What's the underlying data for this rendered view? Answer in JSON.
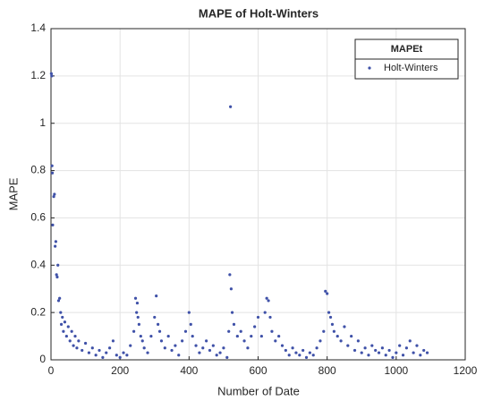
{
  "chart_data": {
    "type": "scatter",
    "title": "MAPE of Holt-Winters",
    "x_label": "Number of Date",
    "y_label": "MAPE",
    "legend_title": "MAPEt",
    "legend_position": "upper right",
    "grid": true,
    "xlim": [
      0,
      1200
    ],
    "xticks": [
      0,
      200,
      400,
      600,
      800,
      1000,
      1200
    ],
    "ylim": [
      0,
      1.4
    ],
    "yticks": [
      0,
      0.2,
      0.4,
      0.6,
      0.8,
      1,
      1.2,
      1.4
    ],
    "x": [
      1,
      2,
      3,
      4,
      5,
      8,
      10,
      12,
      14,
      16,
      18,
      20,
      22,
      25,
      28,
      30,
      33,
      36,
      40,
      45,
      50,
      55,
      60,
      65,
      70,
      75,
      80,
      90,
      100,
      110,
      120,
      130,
      140,
      150,
      160,
      170,
      180,
      190,
      200,
      210,
      220,
      230,
      240,
      245,
      248,
      250,
      252,
      255,
      260,
      265,
      270,
      280,
      290,
      300,
      305,
      310,
      315,
      320,
      330,
      340,
      350,
      360,
      370,
      380,
      390,
      400,
      405,
      410,
      420,
      430,
      440,
      450,
      460,
      470,
      480,
      490,
      500,
      510,
      515,
      518,
      520,
      522,
      525,
      530,
      540,
      550,
      560,
      570,
      580,
      590,
      600,
      610,
      620,
      625,
      630,
      635,
      640,
      650,
      660,
      670,
      680,
      690,
      700,
      710,
      720,
      730,
      740,
      750,
      760,
      770,
      780,
      790,
      795,
      800,
      805,
      810,
      815,
      820,
      830,
      840,
      850,
      860,
      870,
      880,
      890,
      900,
      910,
      920,
      930,
      940,
      950,
      960,
      970,
      980,
      990,
      1000,
      1010,
      1020,
      1030,
      1040,
      1050,
      1060,
      1070,
      1080,
      1090
    ],
    "series": [
      {
        "name": "Holt-Winters",
        "color": "#3f51a8",
        "values": [
          1.21,
          1.2,
          0.82,
          0.79,
          0.57,
          0.69,
          0.7,
          0.48,
          0.5,
          0.36,
          0.35,
          0.4,
          0.25,
          0.26,
          0.2,
          0.15,
          0.18,
          0.12,
          0.16,
          0.1,
          0.14,
          0.08,
          0.12,
          0.06,
          0.1,
          0.05,
          0.08,
          0.04,
          0.07,
          0.03,
          0.05,
          0.02,
          0.04,
          0.01,
          0.03,
          0.05,
          0.08,
          0.02,
          0.01,
          0.03,
          0.02,
          0.06,
          0.12,
          0.26,
          0.2,
          0.24,
          0.18,
          0.15,
          0.1,
          0.08,
          0.05,
          0.03,
          0.1,
          0.18,
          0.27,
          0.15,
          0.12,
          0.08,
          0.05,
          0.1,
          0.04,
          0.06,
          0.02,
          0.08,
          0.12,
          0.2,
          0.15,
          0.1,
          0.06,
          0.03,
          0.05,
          0.08,
          0.04,
          0.06,
          0.02,
          0.03,
          0.05,
          0.01,
          0.12,
          0.36,
          1.07,
          0.3,
          0.2,
          0.15,
          0.1,
          0.12,
          0.08,
          0.05,
          0.1,
          0.14,
          0.18,
          0.1,
          0.2,
          0.26,
          0.25,
          0.18,
          0.12,
          0.08,
          0.1,
          0.06,
          0.04,
          0.02,
          0.05,
          0.03,
          0.02,
          0.04,
          0.01,
          0.03,
          0.02,
          0.05,
          0.08,
          0.12,
          0.29,
          0.28,
          0.2,
          0.18,
          0.15,
          0.12,
          0.1,
          0.08,
          0.14,
          0.06,
          0.1,
          0.04,
          0.08,
          0.03,
          0.05,
          0.02,
          0.06,
          0.04,
          0.03,
          0.05,
          0.02,
          0.04,
          0.01,
          0.03,
          0.06,
          0.02,
          0.05,
          0.08,
          0.03,
          0.06,
          0.02,
          0.04,
          0.03
        ]
      }
    ]
  }
}
